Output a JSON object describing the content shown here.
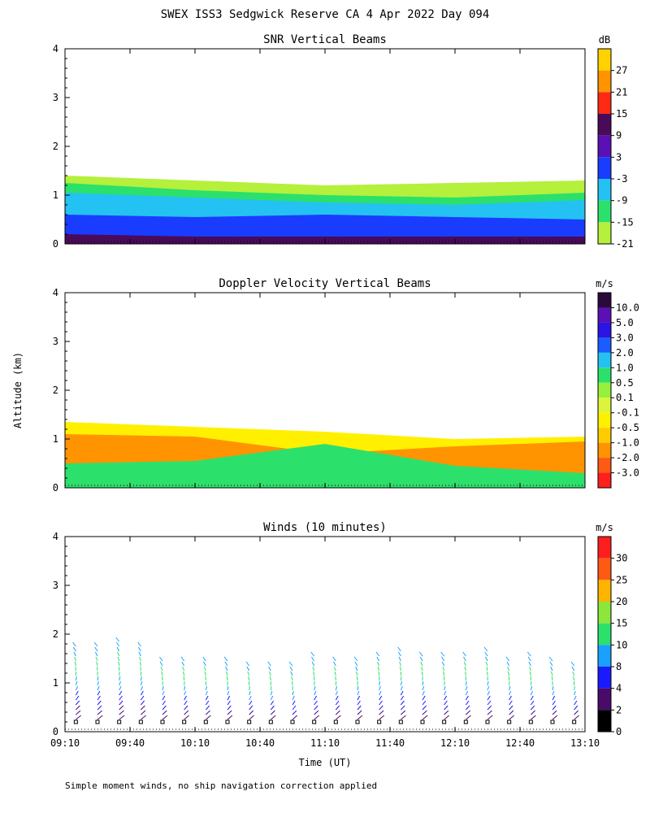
{
  "figure": {
    "title": "SWEX ISS3 Sedgwick Reserve CA    4 Apr 2022 Day 094",
    "shared_ylabel": "Altitude (km)",
    "xlabel": "Time (UT)",
    "footnote": "Simple moment winds, no ship navigation correction applied"
  },
  "chart_data": [
    {
      "type": "heatmap",
      "title": "SNR Vertical Beams",
      "colorbar_unit": "dB",
      "colorbar_labels": [
        "27",
        "21",
        "15",
        "9",
        "3",
        "-3",
        "-9",
        "-15",
        "-21"
      ],
      "colorbar_colors": [
        "#ffd200",
        "#ff9400",
        "#ff2a14",
        "#4a0a5a",
        "#5a10b4",
        "#1a3cff",
        "#24c2f2",
        "#2ce06c",
        "#b4f03c"
      ],
      "ylim": [
        0,
        4
      ],
      "yticks": [
        "0",
        "1",
        "2",
        "3",
        "4"
      ],
      "xlim": [
        "09:10",
        "13:10"
      ],
      "xticks": [
        "09:10",
        "09:40",
        "10:10",
        "10:40",
        "11:10",
        "11:40",
        "12:10",
        "12:40",
        "13:10"
      ],
      "show_xtick_labels": false,
      "layers": [
        {
          "name": "-21",
          "color": "#b4f03c",
          "times": [
            "09:10",
            "10:10",
            "11:10",
            "12:10",
            "13:10"
          ],
          "top_km": [
            1.4,
            1.3,
            1.2,
            1.25,
            1.3
          ]
        },
        {
          "name": "-15",
          "color": "#2ce06c",
          "times": [
            "09:10",
            "10:10",
            "11:10",
            "12:10",
            "13:10"
          ],
          "top_km": [
            1.25,
            1.1,
            1.0,
            0.95,
            1.05
          ]
        },
        {
          "name": "-9",
          "color": "#24c2f2",
          "times": [
            "09:10",
            "10:10",
            "11:10",
            "12:10",
            "13:10"
          ],
          "top_km": [
            1.05,
            0.95,
            0.85,
            0.8,
            0.9
          ]
        },
        {
          "name": "-3",
          "color": "#1a3cff",
          "times": [
            "09:10",
            "10:10",
            "11:10",
            "12:10",
            "13:10"
          ],
          "top_km": [
            0.6,
            0.55,
            0.6,
            0.55,
            0.5
          ]
        },
        {
          "name": "9",
          "color": "#4a0a5a",
          "times": [
            "09:10",
            "10:10",
            "11:10",
            "12:10",
            "13:10"
          ],
          "top_km": [
            0.2,
            0.15,
            0.15,
            0.15,
            0.15
          ]
        }
      ]
    },
    {
      "type": "heatmap",
      "title": "Doppler Velocity Vertical Beams",
      "colorbar_unit": "m/s",
      "colorbar_labels": [
        "10.0",
        "5.0",
        "3.0",
        "2.0",
        "1.0",
        "0.5",
        "0.1",
        "-0.1",
        "-0.5",
        "-1.0",
        "-2.0",
        "-3.0"
      ],
      "colorbar_colors": [
        "#2a0a3a",
        "#5a10b4",
        "#2a14e6",
        "#1a5cff",
        "#24c2f2",
        "#2ce06c",
        "#96f03c",
        "#dcf53c",
        "#fff000",
        "#ffcc00",
        "#ff9400",
        "#ff5a14",
        "#ff1e1e"
      ],
      "ylim": [
        0,
        4
      ],
      "yticks": [
        "0",
        "1",
        "2",
        "3",
        "4"
      ],
      "xlim": [
        "09:10",
        "13:10"
      ],
      "xticks": [
        "09:10",
        "09:40",
        "10:10",
        "10:40",
        "11:10",
        "11:40",
        "12:10",
        "12:40",
        "13:10"
      ],
      "show_xtick_labels": false,
      "layers": [
        {
          "name": "-0.1",
          "color": "#fff000",
          "times": [
            "09:10",
            "10:10",
            "11:10",
            "12:10",
            "13:10"
          ],
          "top_km": [
            1.35,
            1.25,
            1.15,
            1.0,
            1.05
          ]
        },
        {
          "name": "-1.0",
          "color": "#ff9400",
          "times": [
            "09:10",
            "10:10",
            "11:10",
            "12:10",
            "13:10"
          ],
          "top_km": [
            1.1,
            1.05,
            0.7,
            0.85,
            0.95
          ]
        },
        {
          "name": "0.5",
          "color": "#2ce06c",
          "times": [
            "09:10",
            "10:10",
            "11:10",
            "12:10",
            "13:10"
          ],
          "top_km": [
            0.5,
            0.55,
            0.9,
            0.45,
            0.3
          ]
        }
      ]
    },
    {
      "type": "scatter",
      "title": "Winds (10 minutes)",
      "colorbar_unit": "m/s",
      "colorbar_labels": [
        "30",
        "25",
        "20",
        "15",
        "10",
        "8",
        "4",
        "2",
        "0"
      ],
      "colorbar_colors": [
        "#ff1e1e",
        "#ff5a14",
        "#ffb400",
        "#8ce63c",
        "#2ce06c",
        "#1aa0ff",
        "#1a1aff",
        "#4a0a6a",
        "#000000"
      ],
      "ylim": [
        0,
        4
      ],
      "yticks": [
        "0",
        "1",
        "2",
        "3",
        "4"
      ],
      "xlim": [
        "09:10",
        "13:10"
      ],
      "xticks": [
        "09:10",
        "09:40",
        "10:10",
        "10:40",
        "11:10",
        "11:40",
        "12:10",
        "12:40",
        "13:10"
      ],
      "show_xtick_labels": true,
      "profile_times": [
        "09:15",
        "09:25",
        "09:35",
        "09:45",
        "09:55",
        "10:05",
        "10:15",
        "10:25",
        "10:35",
        "10:45",
        "10:55",
        "11:05",
        "11:15",
        "11:25",
        "11:35",
        "11:45",
        "11:55",
        "12:05",
        "12:15",
        "12:25",
        "12:35",
        "12:45",
        "12:55",
        "13:05"
      ],
      "profile_top_km": [
        1.8,
        1.75,
        1.85,
        1.8,
        1.5,
        1.5,
        1.5,
        1.45,
        1.4,
        1.4,
        1.35,
        1.55,
        1.5,
        1.45,
        1.6,
        1.7,
        1.6,
        1.55,
        1.6,
        1.65,
        1.5,
        1.55,
        1.45,
        1.4
      ]
    }
  ]
}
